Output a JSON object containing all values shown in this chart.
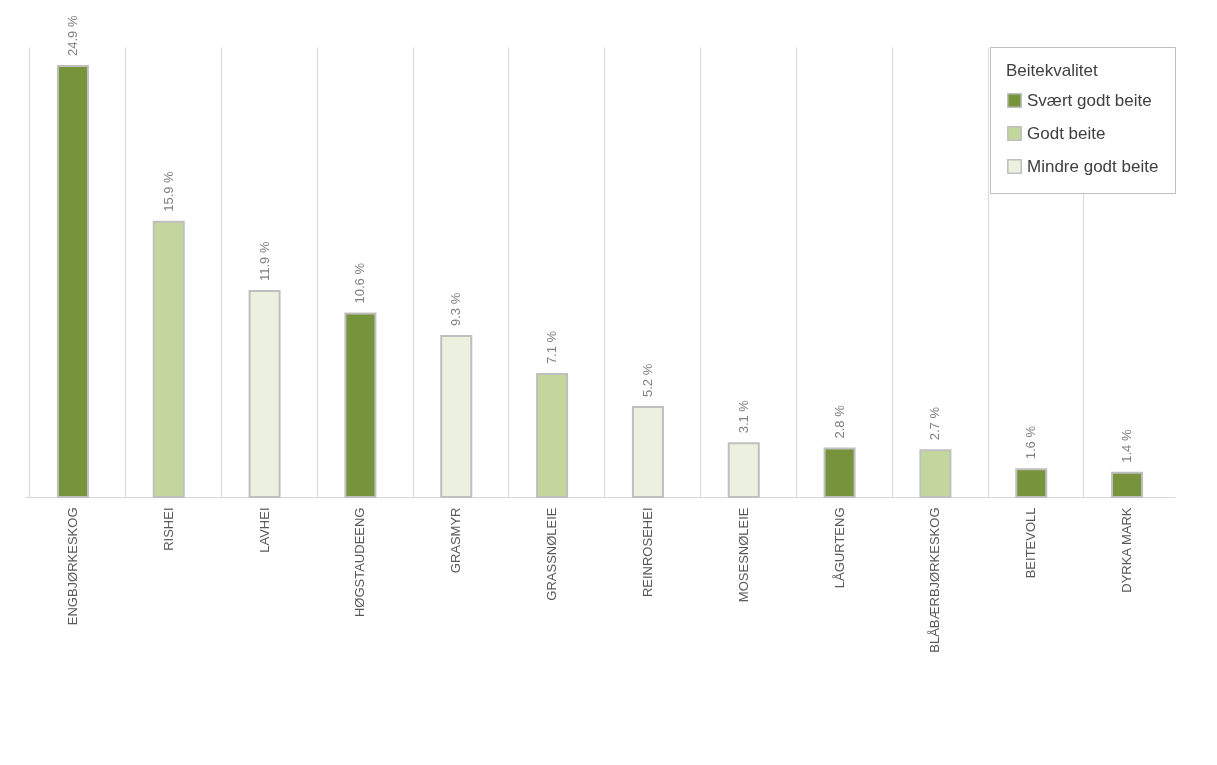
{
  "chart_data": {
    "type": "bar",
    "categories": [
      "ENGBJØRKESKOG",
      "RISHEI",
      "LAVHEI",
      "HØGSTAUDEENG",
      "GRASMYR",
      "GRASSNØLEIE",
      "REINROSEHEI",
      "MOSESNØLEIE",
      "LÅGURTENG",
      "BLÅBÆRBJØRKESKOG",
      "BEITEVOLL",
      "DYRKA MARK"
    ],
    "legend_title": "Beitekvalitet",
    "legend": "top right",
    "grid": "x",
    "series": [
      {
        "name": "Svært godt beite",
        "color": "#77933c",
        "values": [
          24.9,
          null,
          null,
          10.6,
          null,
          null,
          null,
          null,
          2.8,
          null,
          1.6,
          1.4
        ],
        "value_labels": [
          "24.9 %",
          null,
          null,
          "10.6 %",
          null,
          null,
          null,
          null,
          "2.8 %",
          null,
          "1.6 %",
          "1.4 %"
        ]
      },
      {
        "name": "Godt beite",
        "color": "#c3d69b",
        "values": [
          null,
          15.9,
          null,
          null,
          null,
          7.1,
          null,
          null,
          null,
          2.7,
          null,
          null
        ],
        "value_labels": [
          null,
          "15.9 %",
          null,
          null,
          null,
          "7.1 %",
          null,
          null,
          null,
          "2.7 %",
          null,
          null
        ]
      },
      {
        "name": "Mindre godt beite",
        "color": "#ebf1de",
        "values": [
          null,
          null,
          11.9,
          null,
          9.3,
          null,
          5.2,
          3.1,
          null,
          null,
          null,
          null
        ],
        "value_labels": [
          null,
          null,
          "11.9 %",
          null,
          "9.3 %",
          null,
          "5.2 %",
          "3.1 %",
          null,
          null,
          null,
          null
        ]
      }
    ]
  }
}
